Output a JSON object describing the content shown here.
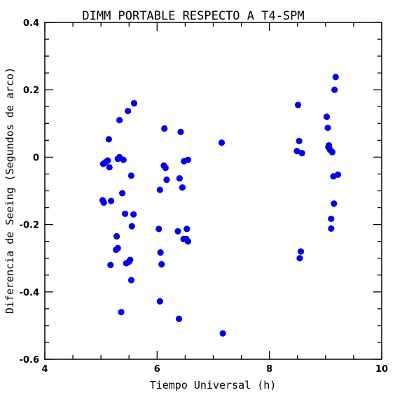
{
  "chart_data": {
    "type": "scatter",
    "title": "DIMM PORTABLE RESPECTO A T4-SPM",
    "xlabel": "Tiempo Universal (h)",
    "ylabel": "Diferencia de Seeing (Segundos de arco)",
    "xlim": [
      4,
      10
    ],
    "ylim": [
      -0.6,
      0.4
    ],
    "xticks": [
      4,
      6,
      8,
      10
    ],
    "xtick_labels": [
      "4",
      "6",
      "8",
      "10"
    ],
    "yticks": [
      -0.6,
      -0.4,
      -0.2,
      0,
      0.2,
      0.4
    ],
    "ytick_labels": [
      "-0.6",
      "-0.4",
      "-0.2",
      "0",
      "0.2",
      "0.4"
    ],
    "grid": false,
    "marker_color": "#0000ee",
    "series": [
      {
        "points": [
          [
            5.04,
            -0.02
          ],
          [
            5.08,
            -0.015
          ],
          [
            5.12,
            -0.01
          ],
          [
            5.15,
            -0.03
          ],
          [
            5.14,
            0.053
          ],
          [
            5.03,
            -0.128
          ],
          [
            5.05,
            -0.135
          ],
          [
            5.18,
            -0.13
          ],
          [
            5.17,
            -0.32
          ],
          [
            5.3,
            -0.005
          ],
          [
            5.33,
            0.0
          ],
          [
            5.4,
            -0.008
          ],
          [
            5.33,
            0.11
          ],
          [
            5.48,
            0.137
          ],
          [
            5.59,
            0.16
          ],
          [
            5.38,
            -0.107
          ],
          [
            5.43,
            -0.168
          ],
          [
            5.58,
            -0.17
          ],
          [
            5.55,
            -0.205
          ],
          [
            5.54,
            -0.055
          ],
          [
            5.28,
            -0.235
          ],
          [
            5.3,
            -0.27
          ],
          [
            5.27,
            -0.275
          ],
          [
            5.45,
            -0.315
          ],
          [
            5.5,
            -0.31
          ],
          [
            5.52,
            -0.305
          ],
          [
            5.54,
            -0.365
          ],
          [
            5.36,
            -0.46
          ],
          [
            6.03,
            -0.213
          ],
          [
            6.05,
            -0.097
          ],
          [
            6.06,
            -0.283
          ],
          [
            6.08,
            -0.318
          ],
          [
            6.05,
            -0.428
          ],
          [
            6.13,
            0.085
          ],
          [
            6.12,
            -0.025
          ],
          [
            6.15,
            -0.032
          ],
          [
            6.17,
            -0.067
          ],
          [
            6.37,
            -0.22
          ],
          [
            6.39,
            -0.48
          ],
          [
            6.42,
            0.075
          ],
          [
            6.4,
            -0.063
          ],
          [
            6.45,
            -0.09
          ],
          [
            6.48,
            -0.012
          ],
          [
            6.55,
            -0.008
          ],
          [
            6.47,
            -0.243
          ],
          [
            6.52,
            -0.243
          ],
          [
            6.55,
            -0.25
          ],
          [
            6.53,
            -0.213
          ],
          [
            7.15,
            0.043
          ],
          [
            7.17,
            -0.523
          ],
          [
            8.51,
            0.155
          ],
          [
            8.53,
            0.048
          ],
          [
            8.49,
            0.018
          ],
          [
            8.58,
            0.012
          ],
          [
            8.56,
            -0.28
          ],
          [
            8.54,
            -0.3
          ],
          [
            9.02,
            0.12
          ],
          [
            9.04,
            0.087
          ],
          [
            9.05,
            0.03
          ],
          [
            9.06,
            0.035
          ],
          [
            9.08,
            0.022
          ],
          [
            9.12,
            0.015
          ],
          [
            9.18,
            0.238
          ],
          [
            9.16,
            0.2
          ],
          [
            9.14,
            -0.057
          ],
          [
            9.22,
            -0.052
          ],
          [
            9.15,
            -0.138
          ],
          [
            9.1,
            -0.183
          ],
          [
            9.1,
            -0.212
          ]
        ]
      }
    ]
  }
}
